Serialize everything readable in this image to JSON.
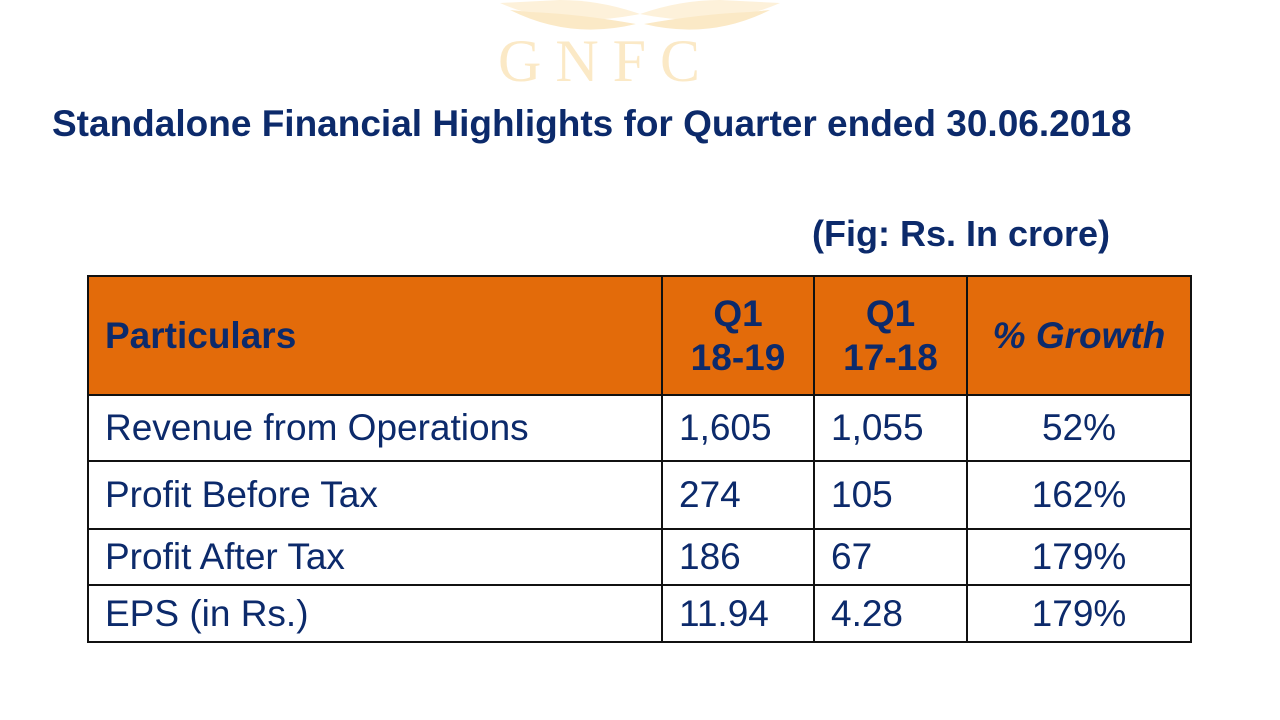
{
  "watermark": {
    "logo_text": "GNFC",
    "color": "#fbe9c6"
  },
  "title": "Standalone Financial Highlights for Quarter ended 30.06.2018",
  "unit_note": "(Fig: Rs. In crore)",
  "colors": {
    "header_bg": "#e36b0a",
    "text": "#0c2a6b"
  },
  "table": {
    "headers": [
      {
        "line1": "Particulars",
        "line2": ""
      },
      {
        "line1": "Q1",
        "line2": "18-19"
      },
      {
        "line1": "Q1",
        "line2": "17-18"
      },
      {
        "line1": "% Growth",
        "line2": ""
      }
    ],
    "rows": [
      [
        "Revenue from Operations",
        "1,605",
        "1,055",
        "52%"
      ],
      [
        "Profit Before Tax",
        "274",
        "105",
        "162%"
      ],
      [
        "Profit After Tax",
        "186",
        "67",
        "179%"
      ],
      [
        "EPS (in Rs.)",
        "11.94",
        "4.28",
        "179%"
      ]
    ]
  }
}
